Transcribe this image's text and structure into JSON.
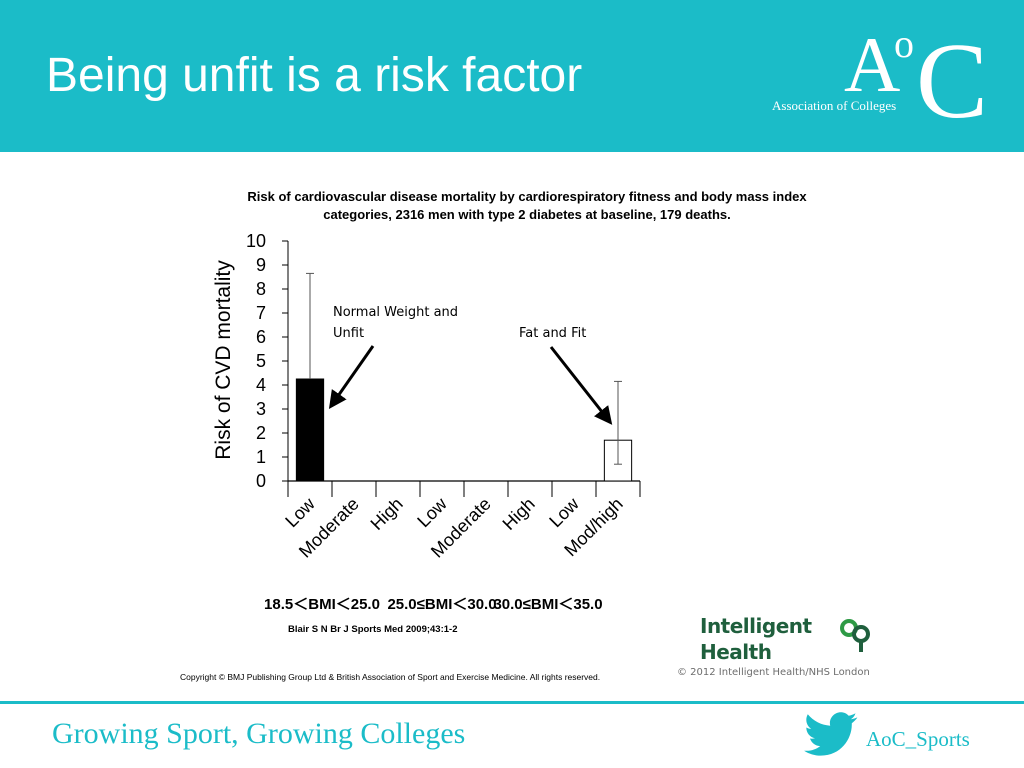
{
  "slide": {
    "title": "Being unfit is a risk factor",
    "footer_slogan": "Growing Sport, Growing Colleges",
    "twitter_handle": "AoC_Sports"
  },
  "aoc_logo": {
    "letter_a": "A",
    "letter_o": "o",
    "letter_c": "C",
    "subtitle": "Association of Colleges"
  },
  "intelligent_health": {
    "line1": "Intelligent",
    "line2": "Health",
    "credit": "© 2012 Intelligent Health/NHS London"
  },
  "colors": {
    "accent": "#1bbcc8",
    "ih_green": "#1f5f3d",
    "bar_filled": "#000000",
    "bar_empty": "#ffffff"
  },
  "chart_data": {
    "type": "bar",
    "title_lines": [
      "Risk of cardiovascular disease mortality by cardiorespiratory fitness and body mass index",
      "categories, 2316 men with type 2 diabetes at baseline, 179 deaths."
    ],
    "ylabel": "Risk of CVD mortality",
    "ylim": [
      0,
      10
    ],
    "yticks": [
      0,
      1,
      2,
      3,
      4,
      5,
      6,
      7,
      8,
      9,
      10
    ],
    "categories": [
      "Low",
      "Moderate",
      "High",
      "Low",
      "Moderate",
      "High",
      "Low",
      "Mod/high"
    ],
    "values": [
      4.25,
      0,
      0,
      0,
      0,
      0,
      0,
      1.7
    ],
    "error_low": [
      null,
      null,
      null,
      null,
      null,
      null,
      null,
      0.7
    ],
    "error_high": [
      8.65,
      null,
      null,
      null,
      null,
      null,
      null,
      4.15
    ],
    "bar_fill": [
      "#000000",
      null,
      null,
      null,
      null,
      null,
      null,
      "#ffffff"
    ],
    "groups": [
      {
        "label": "18.5＜BMI＜25.0",
        "categories": [
          0,
          1,
          2
        ]
      },
      {
        "label": "25.0≤BMI＜30.0",
        "categories": [
          3,
          4,
          5
        ]
      },
      {
        "label": "30.0≤BMI＜35.0",
        "categories": [
          6,
          7
        ]
      }
    ],
    "annotations": [
      {
        "lines": [
          "Normal Weight and",
          "Unfit"
        ],
        "target_category": 0
      },
      {
        "lines": [
          "Fat and Fit"
        ],
        "target_category": 7
      }
    ],
    "citation": "Blair S N Br J Sports Med 2009;43:1-2",
    "copyright": "Copyright © BMJ Publishing Group Ltd & British Association of Sport and Exercise Medicine. All rights reserved."
  }
}
